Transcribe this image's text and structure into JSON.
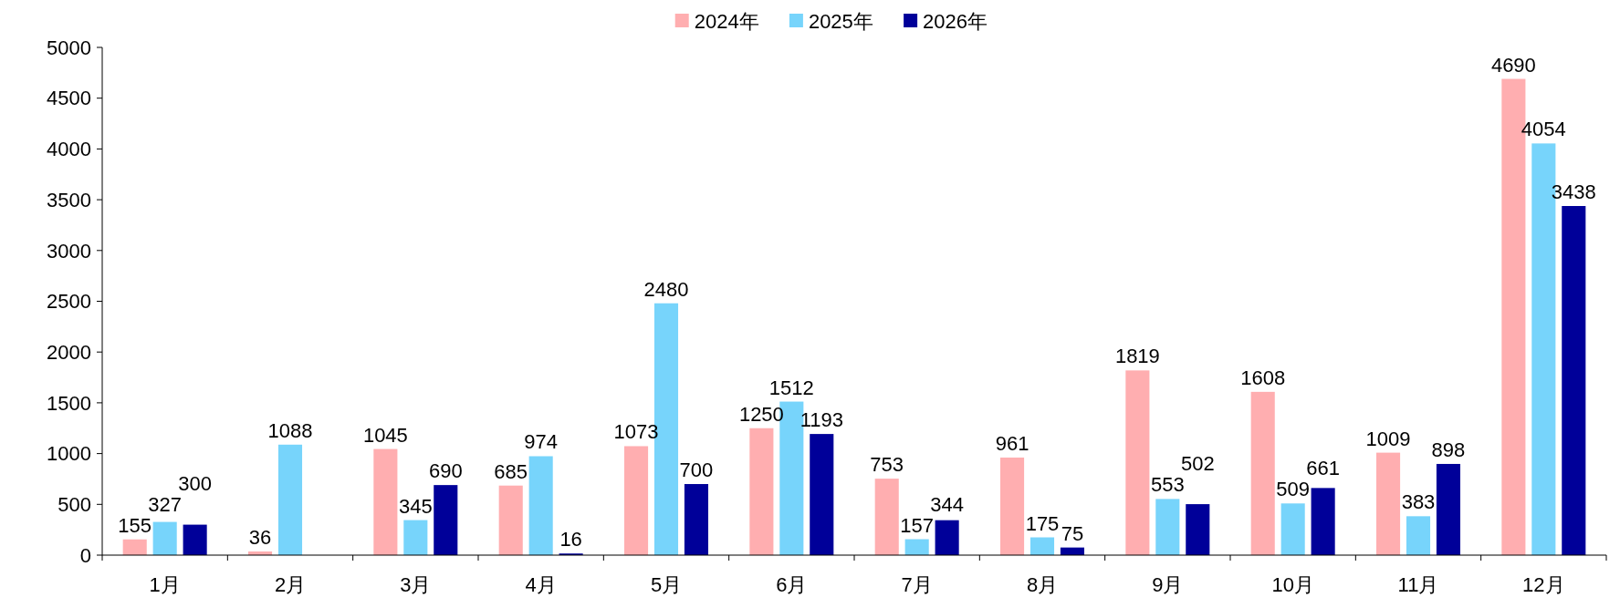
{
  "chart_data": {
    "type": "bar",
    "categories": [
      "1月",
      "2月",
      "3月",
      "4月",
      "5月",
      "6月",
      "7月",
      "8月",
      "9月",
      "10月",
      "11月",
      "12月"
    ],
    "series": [
      {
        "name": "2024年",
        "color": "#ffaeb0",
        "values": [
          155,
          36,
          1045,
          685,
          1073,
          1250,
          753,
          961,
          1819,
          1608,
          1009,
          4690
        ]
      },
      {
        "name": "2025年",
        "color": "#77d4fb",
        "values": [
          327,
          1088,
          345,
          974,
          2480,
          1512,
          157,
          175,
          553,
          509,
          383,
          4054
        ]
      },
      {
        "name": "2026年",
        "color": "#000099",
        "values": [
          300,
          null,
          690,
          16,
          700,
          1193,
          344,
          75,
          502,
          661,
          898,
          3438
        ]
      }
    ],
    "ylim": [
      0,
      5000
    ],
    "yticks": [
      0,
      500,
      1000,
      1500,
      2000,
      2500,
      3000,
      3500,
      4000,
      4500,
      5000
    ],
    "grid": false,
    "legend": "top",
    "data_labels": true
  }
}
